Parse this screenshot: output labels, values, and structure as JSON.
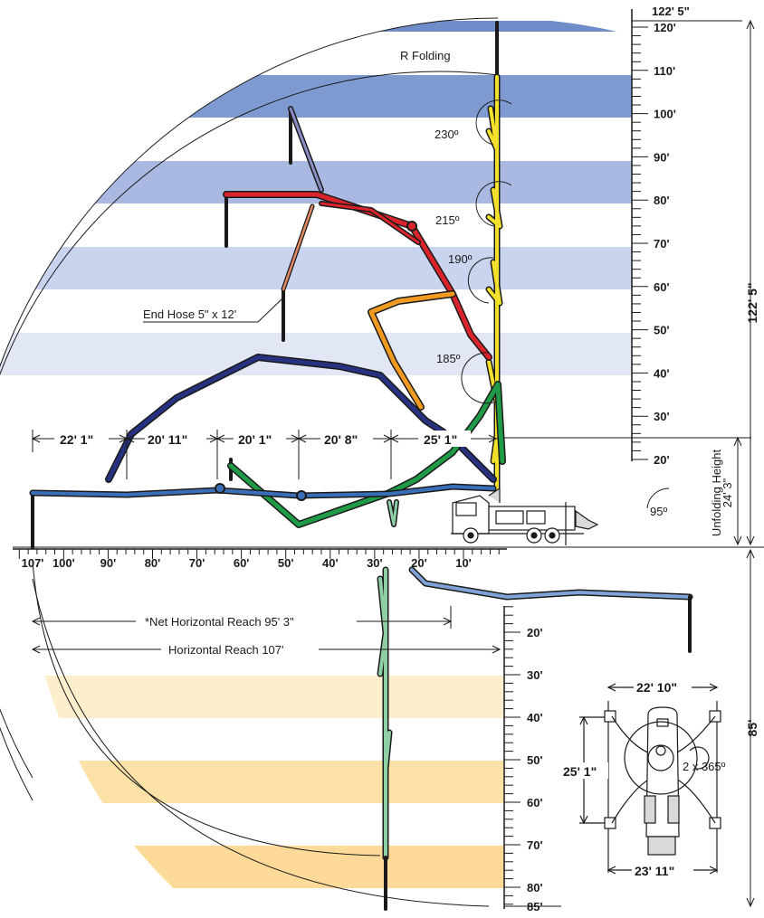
{
  "colors": {
    "blue_dark": "#6f8ec9",
    "blue_mid": "#8fa8d8",
    "blue_light": "#b9c6e8",
    "blue_pale": "#dfe5f4",
    "yellow_band": "#fde6b4",
    "yellow_band_light": "#feefcc",
    "boom_yellow": "#f2e02a",
    "boom_red": "#d9242b",
    "boom_orange": "#f19a22",
    "boom_navy": "#26317f",
    "boom_green": "#1f9a46",
    "boom_blue": "#3a6fb8",
    "boom_salmon": "#e28a63",
    "boom_lavender": "#8a8cc4",
    "boom_sky": "#7fa3d6",
    "boom_mint": "#8fcfa6"
  },
  "vertical_scale": {
    "top_label": "122' 5\"",
    "ticks": [
      "120'",
      "110'",
      "100'",
      "90'",
      "80'",
      "70'",
      "60'",
      "50'",
      "40'",
      "30'",
      "20'"
    ]
  },
  "lower_scale": {
    "ticks": [
      "20'",
      "30'",
      "40'",
      "50'",
      "60'",
      "70'",
      "80'",
      "85'"
    ]
  },
  "horizontal_scale": {
    "ticks": [
      "107'",
      "100'",
      "90'",
      "80'",
      "70'",
      "60'",
      "50'",
      "40'",
      "30'",
      "20'",
      "10'"
    ]
  },
  "right_dimensions": {
    "total_height": "122' 5\"",
    "unfolding_height_title": "Unfolding Height",
    "unfolding_height_value": "24' 3\"",
    "depth": "85'"
  },
  "section_lengths": [
    "22' 1\"",
    "20' 11\"",
    "20' 1\"",
    "20' 8\"",
    "25' 1\""
  ],
  "annotations": {
    "r_folding": "R Folding",
    "end_hose": "End Hose 5\" x 12'",
    "net_reach": "*Net Horizontal Reach 95' 3\"",
    "horizontal_reach": "Horizontal Reach 107'"
  },
  "angles": [
    "230º",
    "215º",
    "190º",
    "185º",
    "95º"
  ],
  "outrigger": {
    "front_width": "22' 10\"",
    "rear_width": "23' 11\"",
    "length": "25' 1\"",
    "rotation": "2 x 365º"
  }
}
